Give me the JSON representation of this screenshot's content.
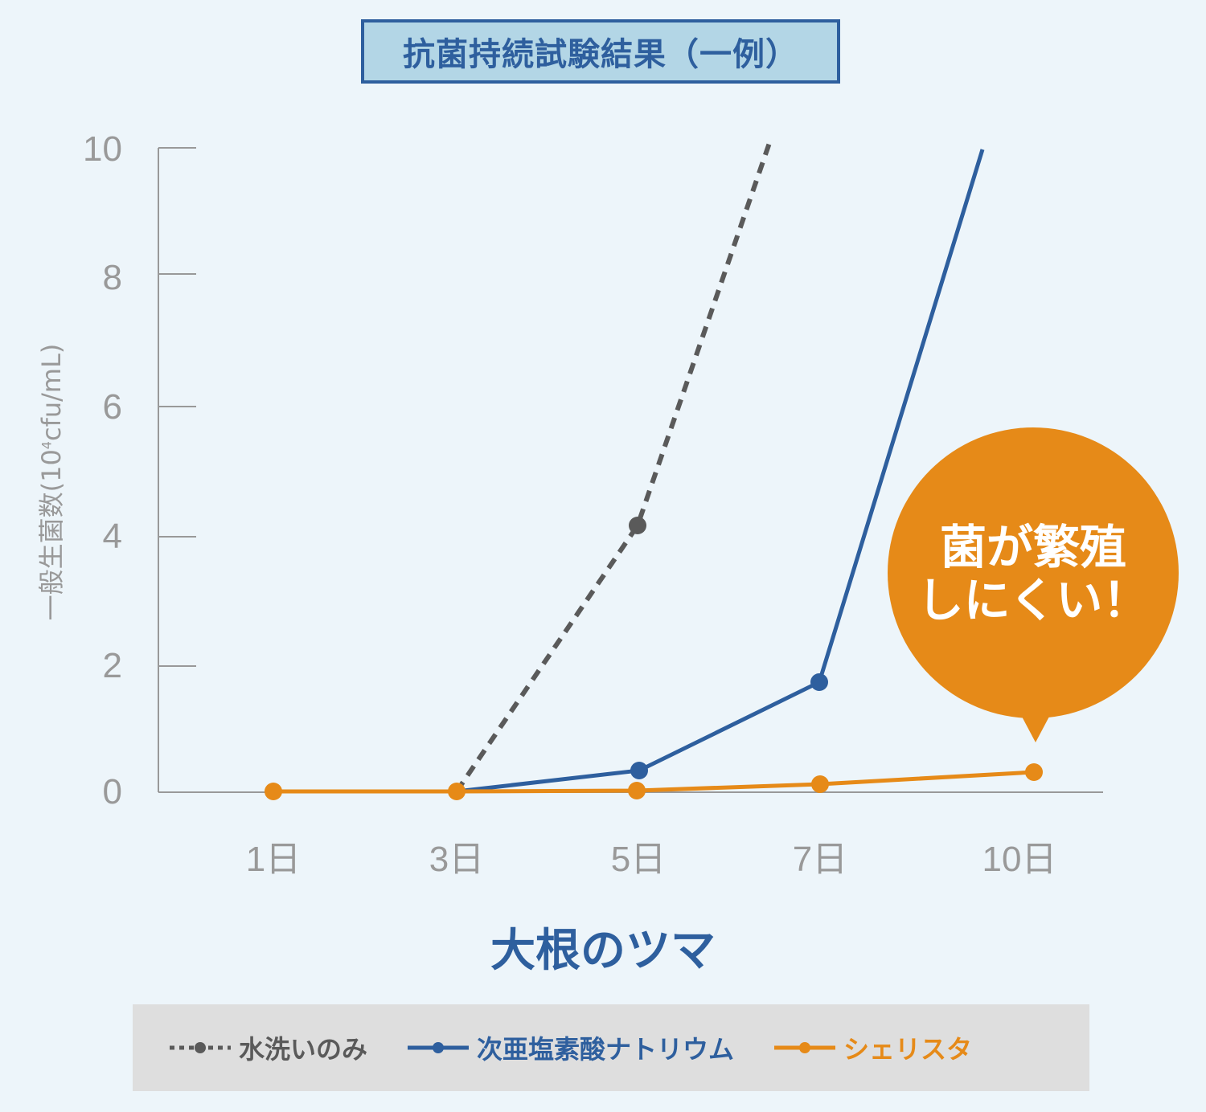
{
  "title": "抗菌持続試験結果（一例）",
  "subject": "大根のツマ",
  "callout": {
    "line1": "菌が繁殖",
    "line2": "しにくい！",
    "color": "#e68a18"
  },
  "y_axis": {
    "label_prefix": "一般生菌数(10",
    "label_sup": "4",
    "label_suffix": "cfu/mL)",
    "ticks": [
      "0",
      "2",
      "4",
      "6",
      "8",
      "10"
    ]
  },
  "x_axis": {
    "ticks": [
      "1日",
      "3日",
      "5日",
      "7日",
      "10日"
    ]
  },
  "legend": [
    {
      "label": "水洗いのみ",
      "color": "#5a5a5a",
      "style": "dashed"
    },
    {
      "label": "次亜塩素酸ナトリウム",
      "color": "#2e5f9e",
      "style": "solid"
    },
    {
      "label": "シェリスタ",
      "color": "#e68a18",
      "style": "solid"
    }
  ],
  "chart_data": {
    "type": "line",
    "title": "抗菌持続試験結果（一例）",
    "subtitle": "大根のツマ",
    "xlabel": "",
    "ylabel": "一般生菌数(10^4cfu/mL)",
    "categories": [
      "1日",
      "3日",
      "5日",
      "7日",
      "10日"
    ],
    "ylim": [
      0,
      10
    ],
    "grid": false,
    "legend_position": "bottom",
    "series": [
      {
        "name": "水洗いのみ",
        "color": "#5a5a5a",
        "style": "dashed",
        "values": [
          null,
          0,
          4.1,
          ">10",
          null
        ]
      },
      {
        "name": "次亜塩素酸ナトリウム",
        "color": "#2e5f9e",
        "style": "solid",
        "values": [
          null,
          0,
          0.3,
          1.7,
          ">10"
        ]
      },
      {
        "name": "シェリスタ",
        "color": "#e68a18",
        "style": "solid",
        "values": [
          0,
          0,
          0.01,
          0.1,
          0.3
        ]
      }
    ],
    "annotations": [
      "菌が繁殖しにくい！"
    ]
  }
}
